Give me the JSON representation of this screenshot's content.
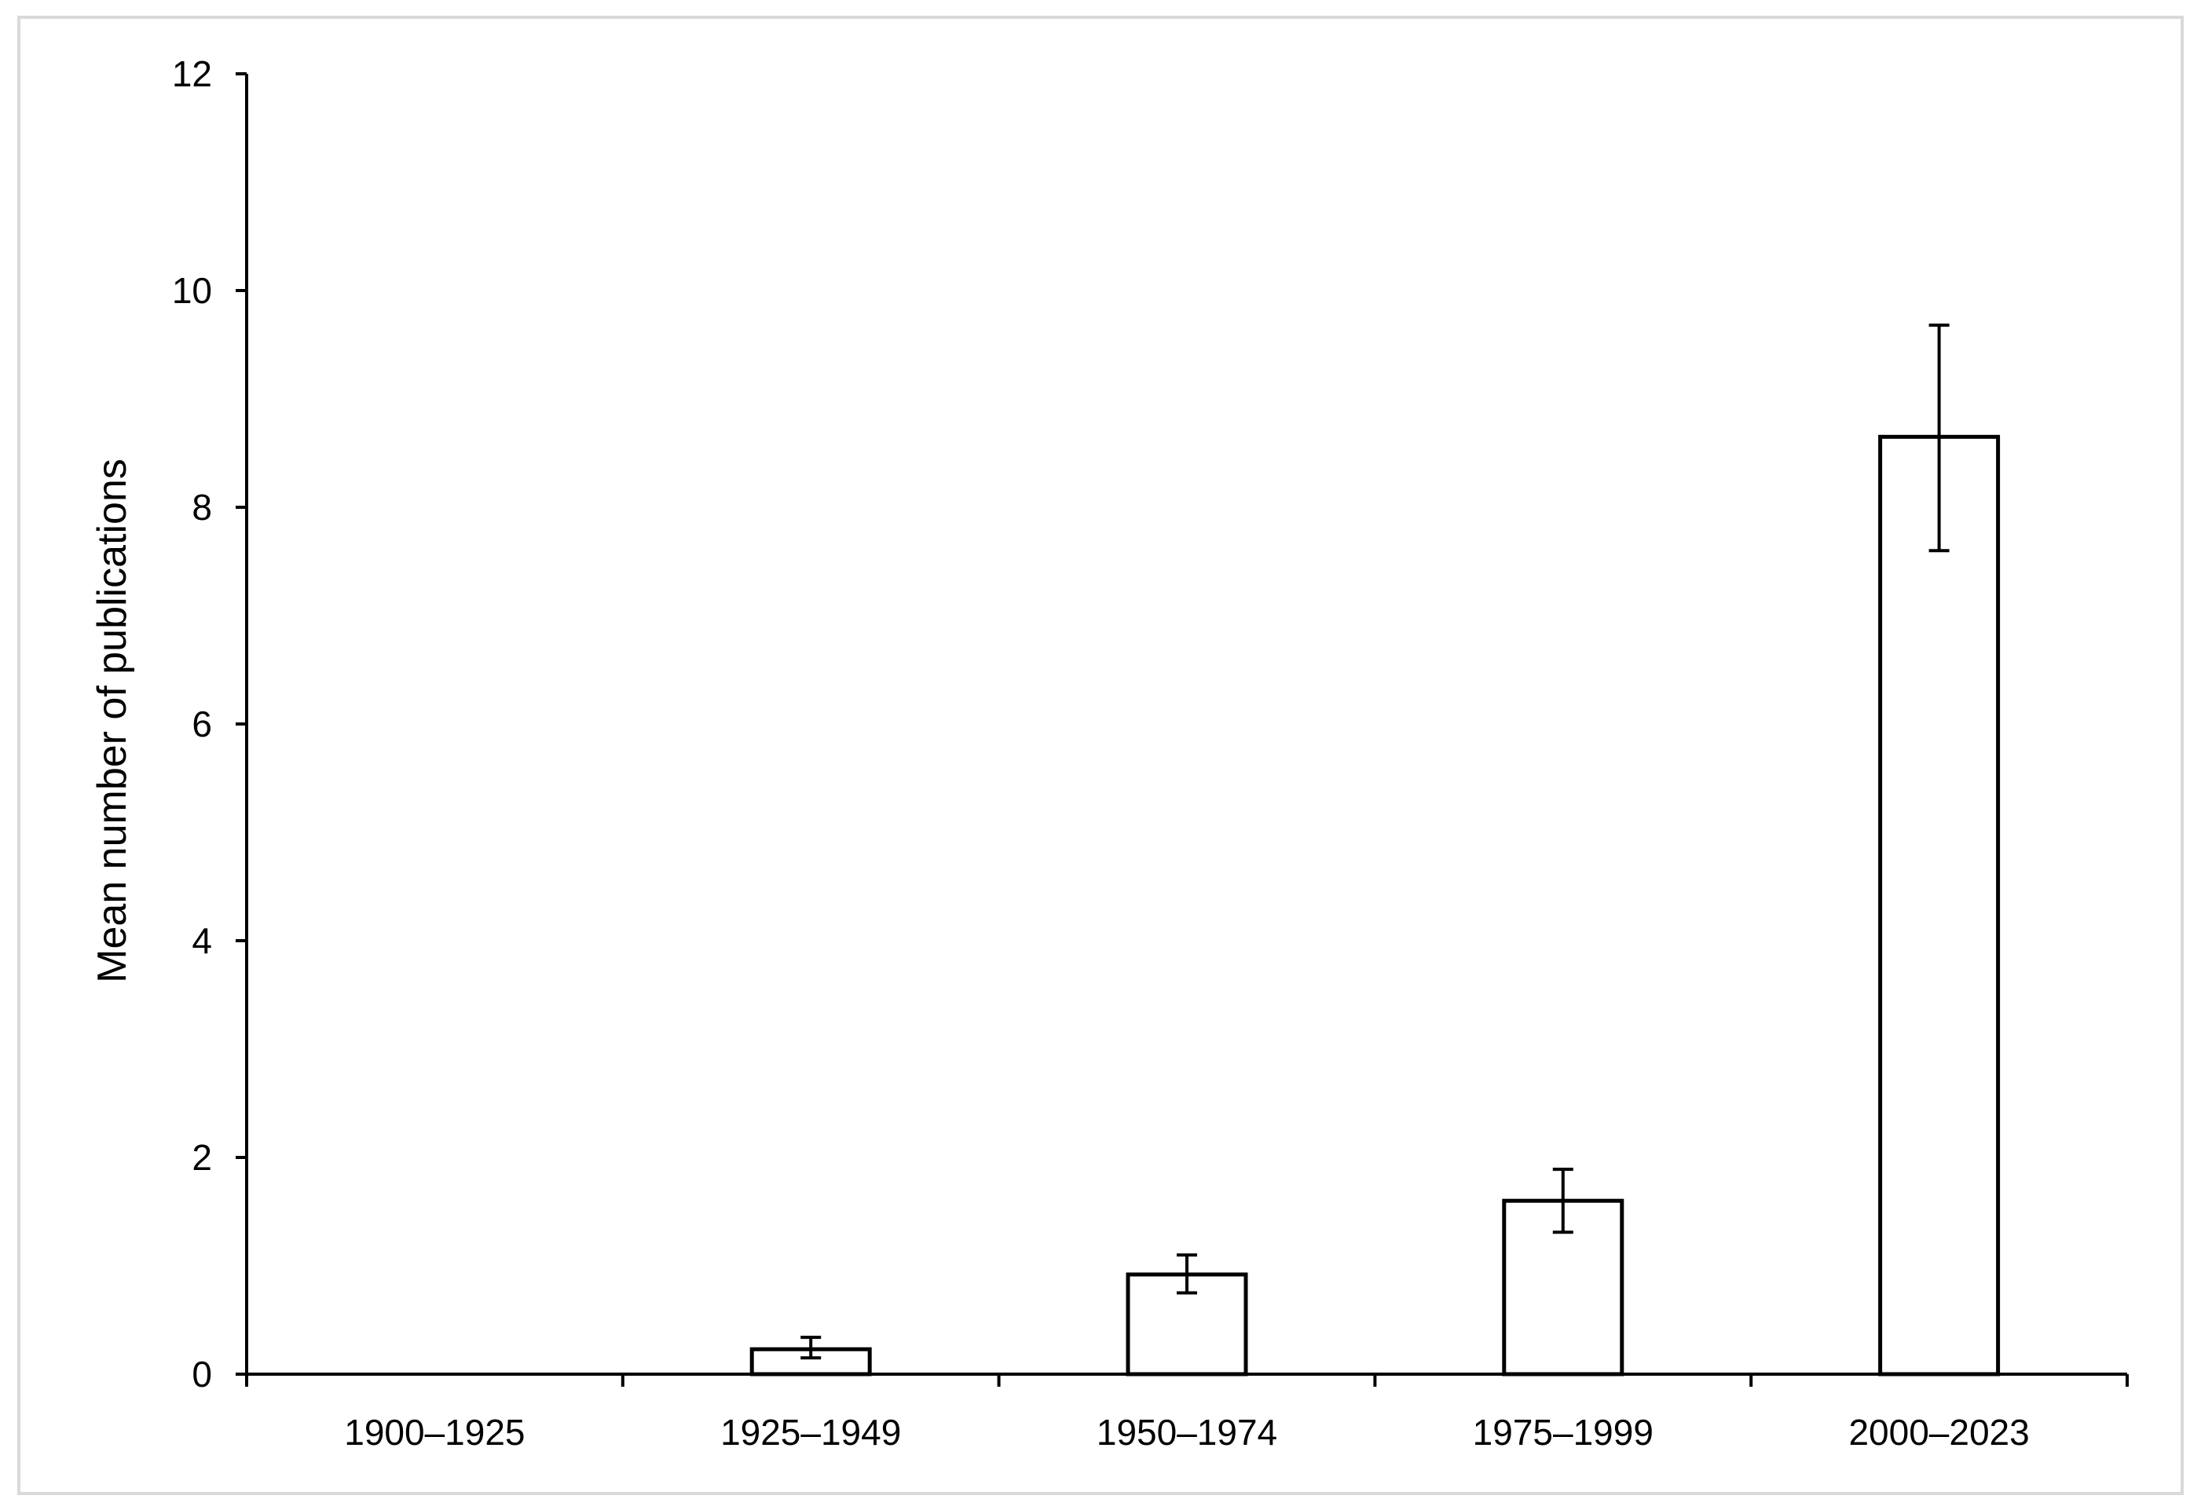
{
  "chart_data": {
    "type": "bar",
    "title": "",
    "xlabel": "",
    "ylabel": "Mean number of publications",
    "categories": [
      "1900–1925",
      "1925–1949",
      "1950–1974",
      "1975–1999",
      "2000–2023"
    ],
    "values": [
      0,
      0.23,
      0.92,
      1.6,
      8.65
    ],
    "error_bars": [
      {
        "low": 0,
        "high": 0
      },
      {
        "low": 0.15,
        "high": 0.34
      },
      {
        "low": 0.75,
        "high": 1.1
      },
      {
        "low": 1.31,
        "high": 1.89
      },
      {
        "low": 7.6,
        "high": 9.68
      }
    ],
    "ylim": [
      0,
      12
    ],
    "yticks": [
      0,
      2,
      4,
      6,
      8,
      10,
      12
    ],
    "grid": false,
    "legend": "none",
    "colors": {
      "bar_fill": "#ffffff",
      "bar_stroke": "#000000",
      "axis": "#000000",
      "frame": "#d9d9d9"
    }
  }
}
